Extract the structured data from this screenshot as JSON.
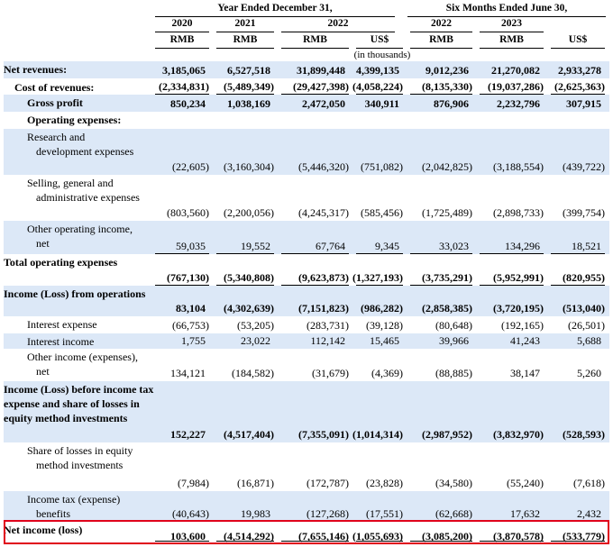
{
  "header": {
    "group_year": "Year Ended December 31,",
    "group_six": "Six Months Ended June 30,",
    "years": [
      "2020",
      "2021",
      "2022",
      "",
      "2022",
      "2023",
      ""
    ],
    "currencies": [
      "RMB",
      "RMB",
      "RMB",
      "US$",
      "RMB",
      "RMB",
      "US$"
    ],
    "in_thousands": "(in thousands)"
  },
  "rows": [
    {
      "label": "Net revenues:",
      "indent": 0,
      "bold": true,
      "shade": true,
      "values": [
        "3,185,065",
        "6,527,518",
        "31,899,448",
        "4,399,135",
        "9,012,236",
        "21,270,082",
        "2,933,278"
      ]
    },
    {
      "label": "Cost of revenues:",
      "indent": 1,
      "bold": true,
      "shade": false,
      "values": [
        "(2,334,831)",
        "(5,489,349)",
        "(29,427,398)",
        "(4,058,224)",
        "(8,135,330)",
        "(19,037,286)",
        "(2,625,363)"
      ]
    },
    {
      "label": "Gross profit",
      "indent": 2,
      "bold": true,
      "shade": true,
      "values": [
        "850,234",
        "1,038,169",
        "2,472,050",
        "340,911",
        "876,906",
        "2,232,796",
        "307,915"
      ]
    },
    {
      "label": "Operating expenses:",
      "indent": 2,
      "bold": true,
      "shade": false,
      "values": [
        "",
        "",
        "",
        "",
        "",
        "",
        ""
      ]
    },
    {
      "label": "Research and development expenses",
      "indent": 3,
      "bold": false,
      "shade": true,
      "values": [
        "(22,605)",
        "(3,160,304)",
        "(5,446,320)",
        "(751,082)",
        "(2,042,825)",
        "(3,188,554)",
        "(439,722)"
      ]
    },
    {
      "label": "Selling, general and administrative expenses",
      "indent": 3,
      "bold": false,
      "shade": false,
      "values": [
        "(803,560)",
        "(2,200,056)",
        "(4,245,317)",
        "(585,456)",
        "(1,725,489)",
        "(2,898,733)",
        "(399,754)"
      ]
    },
    {
      "label": "Other operating income, net",
      "indent": 3,
      "bold": false,
      "shade": true,
      "values": [
        "59,035",
        "19,552",
        "67,764",
        "9,345",
        "33,023",
        "134,296",
        "18,521"
      ]
    },
    {
      "label": "Total operating expenses",
      "indent": 0,
      "bold": true,
      "shade": false,
      "values": [
        "(767,130)",
        "(5,340,808)",
        "(9,623,873)",
        "(1,327,193)",
        "(3,735,291)",
        "(5,952,991)",
        "(820,955)"
      ]
    },
    {
      "label": "Income (Loss) from operations",
      "indent": 0,
      "bold": true,
      "shade": true,
      "values": [
        "83,104",
        "(4,302,639)",
        "(7,151,823)",
        "(986,282)",
        "(2,858,385)",
        "(3,720,195)",
        "(513,040)"
      ]
    },
    {
      "label": "Interest expense",
      "indent": 3,
      "bold": false,
      "shade": false,
      "values": [
        "(66,753)",
        "(53,205)",
        "(283,731)",
        "(39,128)",
        "(80,648)",
        "(192,165)",
        "(26,501)"
      ]
    },
    {
      "label": "Interest income",
      "indent": 3,
      "bold": false,
      "shade": true,
      "values": [
        "1,755",
        "23,022",
        "112,142",
        "15,465",
        "39,966",
        "41,243",
        "5,688"
      ]
    },
    {
      "label": "Other income (expenses), net",
      "indent": 3,
      "bold": false,
      "shade": false,
      "values": [
        "134,121",
        "(184,582)",
        "(31,679)",
        "(4,369)",
        "(88,885)",
        "38,147",
        "5,260"
      ]
    },
    {
      "label": "Income (Loss) before income tax expense and share of losses in equity method investments",
      "indent": 0,
      "bold": true,
      "shade": true,
      "values": [
        "152,227",
        "(4,517,404)",
        "(7,355,091)",
        "(1,014,314)",
        "(2,987,952)",
        "(3,832,970)",
        "(528,593)"
      ]
    },
    {
      "label": "Share of losses in equity method investments",
      "indent": 3,
      "bold": false,
      "shade": false,
      "values": [
        "(7,984)",
        "(16,871)",
        "(172,787)",
        "(23,828)",
        "(34,580)",
        "(55,240)",
        "(7,618)"
      ]
    },
    {
      "label": "Income tax (expense) benefits",
      "indent": 3,
      "bold": false,
      "shade": true,
      "values": [
        "(40,643)",
        "19,983",
        "(127,268)",
        "(17,551)",
        "(62,668)",
        "17,632",
        "2,432"
      ]
    },
    {
      "label": "Net income (loss)",
      "indent": 0,
      "bold": true,
      "shade": false,
      "values": [
        "103,600",
        "(4,514,292)",
        "(7,655,146)",
        "(1,055,693)",
        "(3,085,200)",
        "(3,870,578)",
        "(533,779)"
      ]
    }
  ]
}
